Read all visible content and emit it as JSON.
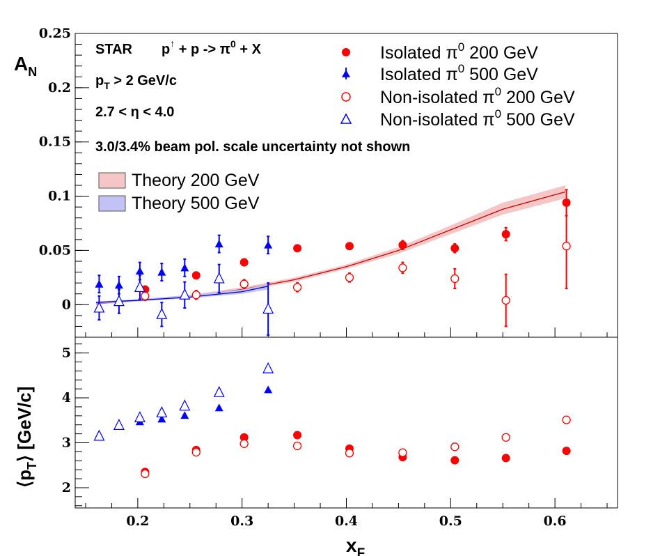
{
  "chart_data": [
    {
      "type": "scatter",
      "panel": "top",
      "ylabel": "A",
      "ylabel_sub": "N",
      "xlim": [
        0.14,
        0.66
      ],
      "ylim": [
        -0.03,
        0.25
      ],
      "yticks": [
        0,
        0.05,
        0.1,
        0.15,
        0.2,
        0.25
      ],
      "ytick_labels": [
        "0",
        "0.05",
        "0.1",
        "0.15",
        "0.2",
        "0.25"
      ],
      "annotations": {
        "star": "STAR",
        "reaction_p1": "p",
        "reaction_up": "↑",
        "reaction_p2": " + p -> π",
        "reaction_sup": "0",
        "reaction_p3": " + X",
        "pt_p": "p",
        "pt_sub": "T",
        "pt_rest": " > 2 GeV/c",
        "eta": "2.7 < η < 4.0",
        "pol": "3.0/3.4% beam pol. scale uncertainty not shown"
      },
      "series": [
        {
          "name": "Isolated π0 200 GeV",
          "legend_pre": "Isolated π",
          "legend_sup": "0",
          "legend_post": " 200 GeV",
          "marker": "circle-filled",
          "color": "#ff0000",
          "points": [
            {
              "x": 0.207,
              "y": 0.014,
              "err": 0.003
            },
            {
              "x": 0.256,
              "y": 0.027,
              "err": 0.003
            },
            {
              "x": 0.302,
              "y": 0.039,
              "err": 0.003
            },
            {
              "x": 0.353,
              "y": 0.052,
              "err": 0.003
            },
            {
              "x": 0.403,
              "y": 0.054,
              "err": 0.003
            },
            {
              "x": 0.454,
              "y": 0.055,
              "err": 0.004
            },
            {
              "x": 0.504,
              "y": 0.052,
              "err": 0.004
            },
            {
              "x": 0.553,
              "y": 0.065,
              "err": 0.006
            },
            {
              "x": 0.611,
              "y": 0.094,
              "err": 0.012
            }
          ]
        },
        {
          "name": "Isolated π0 500 GeV",
          "legend_pre": "Isolated π",
          "legend_sup": "0",
          "legend_post": " 500 GeV",
          "marker": "triangle-filled",
          "color": "#0000ff",
          "points": [
            {
              "x": 0.163,
              "y": 0.019,
              "err": 0.008
            },
            {
              "x": 0.182,
              "y": 0.018,
              "err": 0.008
            },
            {
              "x": 0.202,
              "y": 0.031,
              "err": 0.008
            },
            {
              "x": 0.223,
              "y": 0.03,
              "err": 0.008
            },
            {
              "x": 0.245,
              "y": 0.034,
              "err": 0.008
            },
            {
              "x": 0.278,
              "y": 0.056,
              "err": 0.008
            },
            {
              "x": 0.325,
              "y": 0.055,
              "err": 0.008
            }
          ]
        },
        {
          "name": "Non-isolated π0 200 GeV",
          "legend_pre": "Non-isolated π",
          "legend_sup": "0",
          "legend_post": " 200 GeV",
          "marker": "circle-open",
          "color": "#ff0000",
          "points": [
            {
              "x": 0.207,
              "y": 0.008,
              "err": 0.004
            },
            {
              "x": 0.256,
              "y": 0.009,
              "err": 0.004
            },
            {
              "x": 0.302,
              "y": 0.019,
              "err": 0.004
            },
            {
              "x": 0.353,
              "y": 0.016,
              "err": 0.004
            },
            {
              "x": 0.403,
              "y": 0.025,
              "err": 0.004
            },
            {
              "x": 0.454,
              "y": 0.034,
              "err": 0.005
            },
            {
              "x": 0.504,
              "y": 0.024,
              "err": 0.009
            },
            {
              "x": 0.553,
              "y": 0.004,
              "err": 0.024
            },
            {
              "x": 0.611,
              "y": 0.054,
              "err": 0.039
            }
          ]
        },
        {
          "name": "Non-isolated π0 500 GeV",
          "legend_pre": "Non-isolated π",
          "legend_sup": "0",
          "legend_post": " 500 GeV",
          "marker": "triangle-open",
          "color": "#0000ff",
          "points": [
            {
              "x": 0.163,
              "y": -0.003,
              "err": 0.011
            },
            {
              "x": 0.182,
              "y": 0.003,
              "err": 0.011
            },
            {
              "x": 0.202,
              "y": 0.016,
              "err": 0.011
            },
            {
              "x": 0.223,
              "y": -0.009,
              "err": 0.011
            },
            {
              "x": 0.245,
              "y": 0.009,
              "err": 0.012
            },
            {
              "x": 0.278,
              "y": 0.024,
              "err": 0.013
            },
            {
              "x": 0.325,
              "y": -0.004,
              "err": 0.024
            }
          ]
        }
      ],
      "bands": [
        {
          "name": "Theory 200 GeV",
          "line_color": "#cc0000",
          "fill_color": "#f5c6c6",
          "points": [
            {
              "x": 0.16,
              "y": 0.001,
              "lo": 0.0,
              "hi": 0.002
            },
            {
              "x": 0.2,
              "y": 0.004,
              "lo": 0.003,
              "hi": 0.005
            },
            {
              "x": 0.25,
              "y": 0.008,
              "lo": 0.007,
              "hi": 0.009
            },
            {
              "x": 0.3,
              "y": 0.014,
              "lo": 0.013,
              "hi": 0.016
            },
            {
              "x": 0.35,
              "y": 0.023,
              "lo": 0.021,
              "hi": 0.025
            },
            {
              "x": 0.4,
              "y": 0.035,
              "lo": 0.033,
              "hi": 0.037
            },
            {
              "x": 0.45,
              "y": 0.05,
              "lo": 0.047,
              "hi": 0.053
            },
            {
              "x": 0.5,
              "y": 0.069,
              "lo": 0.065,
              "hi": 0.073
            },
            {
              "x": 0.55,
              "y": 0.088,
              "lo": 0.083,
              "hi": 0.094
            },
            {
              "x": 0.61,
              "y": 0.104,
              "lo": 0.098,
              "hi": 0.11
            }
          ]
        },
        {
          "name": "Theory 500 GeV",
          "line_color": "#0000cc",
          "fill_color": "#c2c2f5",
          "points": [
            {
              "x": 0.16,
              "y": 0.002,
              "lo": 0.001,
              "hi": 0.003
            },
            {
              "x": 0.2,
              "y": 0.004,
              "lo": 0.003,
              "hi": 0.005
            },
            {
              "x": 0.25,
              "y": 0.007,
              "lo": 0.006,
              "hi": 0.009
            },
            {
              "x": 0.3,
              "y": 0.012,
              "lo": 0.01,
              "hi": 0.014
            },
            {
              "x": 0.325,
              "y": 0.017,
              "lo": 0.014,
              "hi": 0.019
            }
          ]
        }
      ]
    },
    {
      "type": "scatter",
      "panel": "bottom",
      "xlabel": "x",
      "xlabel_sub": "F",
      "ylabel_pre": "⟨p",
      "ylabel_sub": "T",
      "ylabel_post": "⟩ [GeV/c]",
      "xlim": [
        0.14,
        0.66
      ],
      "ylim": [
        1.55,
        5.35
      ],
      "xticks": [
        0.2,
        0.3,
        0.4,
        0.5,
        0.6
      ],
      "xtick_labels": [
        "0.2",
        "0.3",
        "0.4",
        "0.5",
        "0.6"
      ],
      "yticks": [
        2,
        3,
        4,
        5
      ],
      "ytick_labels": [
        "2",
        "3",
        "4",
        "5"
      ],
      "series": [
        {
          "name": "Isolated π0 200 GeV",
          "marker": "circle-filled",
          "color": "#ff0000",
          "points": [
            {
              "x": 0.207,
              "y": 2.35
            },
            {
              "x": 0.256,
              "y": 2.84
            },
            {
              "x": 0.302,
              "y": 3.12
            },
            {
              "x": 0.353,
              "y": 3.17
            },
            {
              "x": 0.403,
              "y": 2.87
            },
            {
              "x": 0.454,
              "y": 2.68
            },
            {
              "x": 0.504,
              "y": 2.61
            },
            {
              "x": 0.553,
              "y": 2.66
            },
            {
              "x": 0.611,
              "y": 2.82
            }
          ]
        },
        {
          "name": "Isolated π0 500 GeV",
          "marker": "triangle-filled",
          "color": "#0000ff",
          "points": [
            {
              "x": 0.163,
              "y": 3.19
            },
            {
              "x": 0.182,
              "y": 3.4
            },
            {
              "x": 0.202,
              "y": 3.47
            },
            {
              "x": 0.223,
              "y": 3.53
            },
            {
              "x": 0.245,
              "y": 3.61
            },
            {
              "x": 0.278,
              "y": 3.78
            },
            {
              "x": 0.325,
              "y": 4.18
            }
          ]
        },
        {
          "name": "Non-isolated π0 200 GeV",
          "marker": "circle-open",
          "color": "#ff0000",
          "points": [
            {
              "x": 0.207,
              "y": 2.31
            },
            {
              "x": 0.256,
              "y": 2.79
            },
            {
              "x": 0.302,
              "y": 2.98
            },
            {
              "x": 0.353,
              "y": 2.93
            },
            {
              "x": 0.403,
              "y": 2.77
            },
            {
              "x": 0.454,
              "y": 2.78
            },
            {
              "x": 0.504,
              "y": 2.91
            },
            {
              "x": 0.553,
              "y": 3.12
            },
            {
              "x": 0.611,
              "y": 3.51
            }
          ]
        },
        {
          "name": "Non-isolated π0 500 GeV",
          "marker": "triangle-open",
          "color": "#0000ff",
          "points": [
            {
              "x": 0.163,
              "y": 3.15
            },
            {
              "x": 0.182,
              "y": 3.39
            },
            {
              "x": 0.202,
              "y": 3.56
            },
            {
              "x": 0.223,
              "y": 3.67
            },
            {
              "x": 0.245,
              "y": 3.82
            },
            {
              "x": 0.278,
              "y": 4.12
            },
            {
              "x": 0.325,
              "y": 4.65
            }
          ]
        }
      ]
    }
  ]
}
